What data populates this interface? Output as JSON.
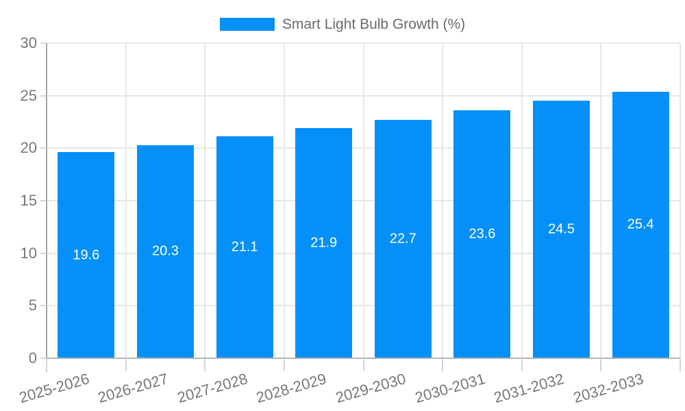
{
  "chart_data": {
    "type": "bar",
    "title": "",
    "xlabel": "",
    "ylabel": "",
    "legend": {
      "label": "Smart Light Bulb Growth (%)",
      "position": "top-center"
    },
    "categories": [
      "2025-2026",
      "2026-2027",
      "2027-2028",
      "2028-2029",
      "2029-2030",
      "2030-2031",
      "2031-2032",
      "2032-2033"
    ],
    "series": [
      {
        "name": "Smart Light Bulb Growth (%)",
        "values": [
          19.6,
          20.3,
          21.1,
          21.9,
          22.7,
          23.6,
          24.5,
          25.4
        ],
        "value_labels": [
          "19.6",
          "20.3",
          "21.1",
          "21.9",
          "22.7",
          "23.6",
          "24.5",
          "25.4"
        ]
      }
    ],
    "ylim": [
      0,
      30
    ],
    "yticks": [
      0,
      5,
      10,
      15,
      20,
      25,
      30
    ],
    "ytick_labels": [
      "0",
      "5",
      "10",
      "15",
      "20",
      "25",
      "30"
    ],
    "grid": {
      "horizontal": true,
      "vertical": true
    },
    "colors": {
      "bar": "#0490F8",
      "bar_value_text": "#FFFFFF",
      "grid_line": "#E6E6E6",
      "y_axis_line": "#A3A3A3",
      "x_axis_line": "#B5B5B5",
      "tick_mark": "#D4D4D4",
      "axis_text": "#757779",
      "legend_text": "#6A6A6A"
    }
  }
}
